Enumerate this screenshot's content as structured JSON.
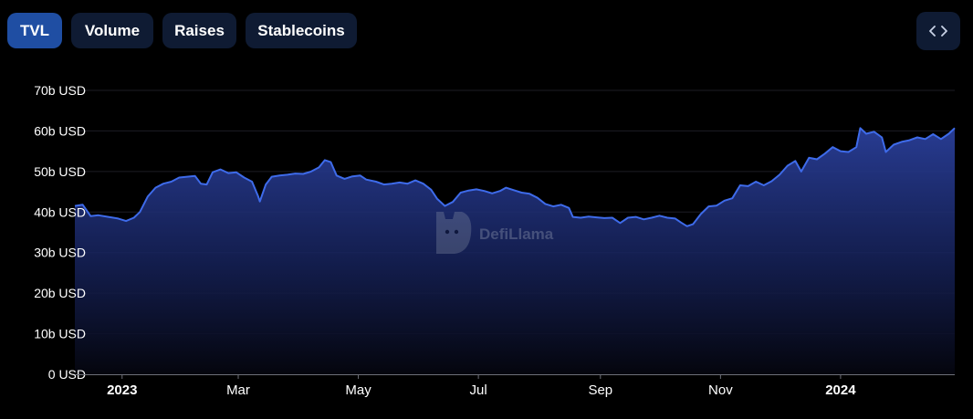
{
  "toolbar": {
    "tabs": [
      {
        "label": "TVL",
        "active": true
      },
      {
        "label": "Volume",
        "active": false
      },
      {
        "label": "Raises",
        "active": false
      },
      {
        "label": "Stablecoins",
        "active": false
      }
    ],
    "embed_icon": "code-brackets-icon"
  },
  "watermark": {
    "text": "DefiLlama",
    "icon": "llama-logo-icon"
  },
  "colors": {
    "background": "#000000",
    "tab_bg": "#0f1b33",
    "tab_active_bg": "#1f4ea3",
    "line": "#3e6bea",
    "fill_top": "#2a3f9a",
    "grid": "#1c1c24",
    "tick_text": "#ffffff"
  },
  "chart_data": {
    "type": "area",
    "title": "",
    "xlabel": "",
    "ylabel": "",
    "ylim": [
      0,
      70
    ],
    "y_unit": "b USD",
    "y_ticks": [
      "0 USD",
      "10b USD",
      "20b USD",
      "30b USD",
      "40b USD",
      "50b USD",
      "60b USD",
      "70b USD"
    ],
    "y_tick_values": [
      0,
      10,
      20,
      30,
      40,
      50,
      60,
      70
    ],
    "x_ticks": [
      "2023",
      "Mar",
      "May",
      "Jul",
      "Sep",
      "Nov",
      "2024"
    ],
    "x_tick_dates": [
      "2023-01-01",
      "2023-03-01",
      "2023-05-01",
      "2023-07-01",
      "2023-09-01",
      "2023-11-01",
      "2024-01-01"
    ],
    "x_range": [
      "2022-12-08",
      "2024-02-28"
    ],
    "grid": true,
    "series": [
      {
        "points": [
          [
            "2022-12-08",
            41.5
          ],
          [
            "2022-12-12",
            41.8
          ],
          [
            "2022-12-16",
            39.0
          ],
          [
            "2022-12-20",
            39.2
          ],
          [
            "2022-12-25",
            38.8
          ],
          [
            "2022-12-30",
            38.4
          ],
          [
            "2023-01-03",
            37.8
          ],
          [
            "2023-01-07",
            38.6
          ],
          [
            "2023-01-10",
            40.0
          ],
          [
            "2023-01-14",
            43.8
          ],
          [
            "2023-01-18",
            46.0
          ],
          [
            "2023-01-22",
            47.0
          ],
          [
            "2023-01-26",
            47.5
          ],
          [
            "2023-01-30",
            48.5
          ],
          [
            "2023-02-03",
            48.7
          ],
          [
            "2023-02-07",
            48.9
          ],
          [
            "2023-02-10",
            47.0
          ],
          [
            "2023-02-13",
            46.8
          ],
          [
            "2023-02-16",
            49.8
          ],
          [
            "2023-02-20",
            50.5
          ],
          [
            "2023-02-24",
            49.6
          ],
          [
            "2023-02-28",
            49.8
          ],
          [
            "2023-03-04",
            48.5
          ],
          [
            "2023-03-08",
            47.5
          ],
          [
            "2023-03-11",
            44.0
          ],
          [
            "2023-03-12",
            42.6
          ],
          [
            "2023-03-15",
            46.8
          ],
          [
            "2023-03-18",
            48.7
          ],
          [
            "2023-03-22",
            49.0
          ],
          [
            "2023-03-26",
            49.2
          ],
          [
            "2023-03-30",
            49.5
          ],
          [
            "2023-04-03",
            49.4
          ],
          [
            "2023-04-07",
            50.0
          ],
          [
            "2023-04-11",
            51.0
          ],
          [
            "2023-04-14",
            52.8
          ],
          [
            "2023-04-17",
            52.3
          ],
          [
            "2023-04-20",
            49.0
          ],
          [
            "2023-04-24",
            48.2
          ],
          [
            "2023-04-28",
            48.8
          ],
          [
            "2023-05-02",
            49.0
          ],
          [
            "2023-05-05",
            48.0
          ],
          [
            "2023-05-10",
            47.5
          ],
          [
            "2023-05-14",
            46.8
          ],
          [
            "2023-05-18",
            47.0
          ],
          [
            "2023-05-22",
            47.3
          ],
          [
            "2023-05-26",
            47.0
          ],
          [
            "2023-05-30",
            47.8
          ],
          [
            "2023-06-03",
            47.0
          ],
          [
            "2023-06-07",
            45.5
          ],
          [
            "2023-06-10",
            43.3
          ],
          [
            "2023-06-14",
            41.5
          ],
          [
            "2023-06-18",
            42.5
          ],
          [
            "2023-06-22",
            44.8
          ],
          [
            "2023-06-26",
            45.3
          ],
          [
            "2023-06-30",
            45.6
          ],
          [
            "2023-07-04",
            45.2
          ],
          [
            "2023-07-08",
            44.6
          ],
          [
            "2023-07-12",
            45.2
          ],
          [
            "2023-07-15",
            46.0
          ],
          [
            "2023-07-19",
            45.4
          ],
          [
            "2023-07-23",
            44.8
          ],
          [
            "2023-07-27",
            44.5
          ],
          [
            "2023-07-31",
            43.5
          ],
          [
            "2023-08-04",
            42.0
          ],
          [
            "2023-08-08",
            41.4
          ],
          [
            "2023-08-12",
            41.8
          ],
          [
            "2023-08-16",
            41.0
          ],
          [
            "2023-08-18",
            38.8
          ],
          [
            "2023-08-22",
            38.6
          ],
          [
            "2023-08-26",
            38.9
          ],
          [
            "2023-08-30",
            38.7
          ],
          [
            "2023-09-03",
            38.5
          ],
          [
            "2023-09-07",
            38.6
          ],
          [
            "2023-09-11",
            37.3
          ],
          [
            "2023-09-15",
            38.6
          ],
          [
            "2023-09-19",
            38.8
          ],
          [
            "2023-09-23",
            38.2
          ],
          [
            "2023-09-27",
            38.6
          ],
          [
            "2023-10-01",
            39.1
          ],
          [
            "2023-10-05",
            38.6
          ],
          [
            "2023-10-09",
            38.4
          ],
          [
            "2023-10-12",
            37.4
          ],
          [
            "2023-10-15",
            36.5
          ],
          [
            "2023-10-18",
            37.0
          ],
          [
            "2023-10-22",
            39.5
          ],
          [
            "2023-10-26",
            41.4
          ],
          [
            "2023-10-30",
            41.6
          ],
          [
            "2023-11-03",
            42.8
          ],
          [
            "2023-11-07",
            43.4
          ],
          [
            "2023-11-11",
            46.6
          ],
          [
            "2023-11-15",
            46.4
          ],
          [
            "2023-11-19",
            47.5
          ],
          [
            "2023-11-23",
            46.6
          ],
          [
            "2023-11-27",
            47.6
          ],
          [
            "2023-12-01",
            49.2
          ],
          [
            "2023-12-05",
            51.4
          ],
          [
            "2023-12-09",
            52.6
          ],
          [
            "2023-12-12",
            50.0
          ],
          [
            "2023-12-16",
            53.4
          ],
          [
            "2023-12-20",
            53.0
          ],
          [
            "2023-12-24",
            54.4
          ],
          [
            "2023-12-28",
            56.0
          ],
          [
            "2024-01-01",
            55.0
          ],
          [
            "2024-01-05",
            54.8
          ],
          [
            "2024-01-09",
            56.0
          ],
          [
            "2024-01-11",
            60.7
          ],
          [
            "2024-01-14",
            59.3
          ],
          [
            "2024-01-18",
            59.8
          ],
          [
            "2024-01-22",
            58.4
          ],
          [
            "2024-01-24",
            54.8
          ],
          [
            "2024-01-28",
            56.6
          ],
          [
            "2024-02-01",
            57.3
          ],
          [
            "2024-02-05",
            57.7
          ],
          [
            "2024-02-09",
            58.4
          ],
          [
            "2024-02-13",
            58.0
          ],
          [
            "2024-02-17",
            59.2
          ],
          [
            "2024-02-21",
            58.0
          ],
          [
            "2024-02-25",
            59.3
          ],
          [
            "2024-02-28",
            60.7
          ]
        ]
      }
    ]
  }
}
